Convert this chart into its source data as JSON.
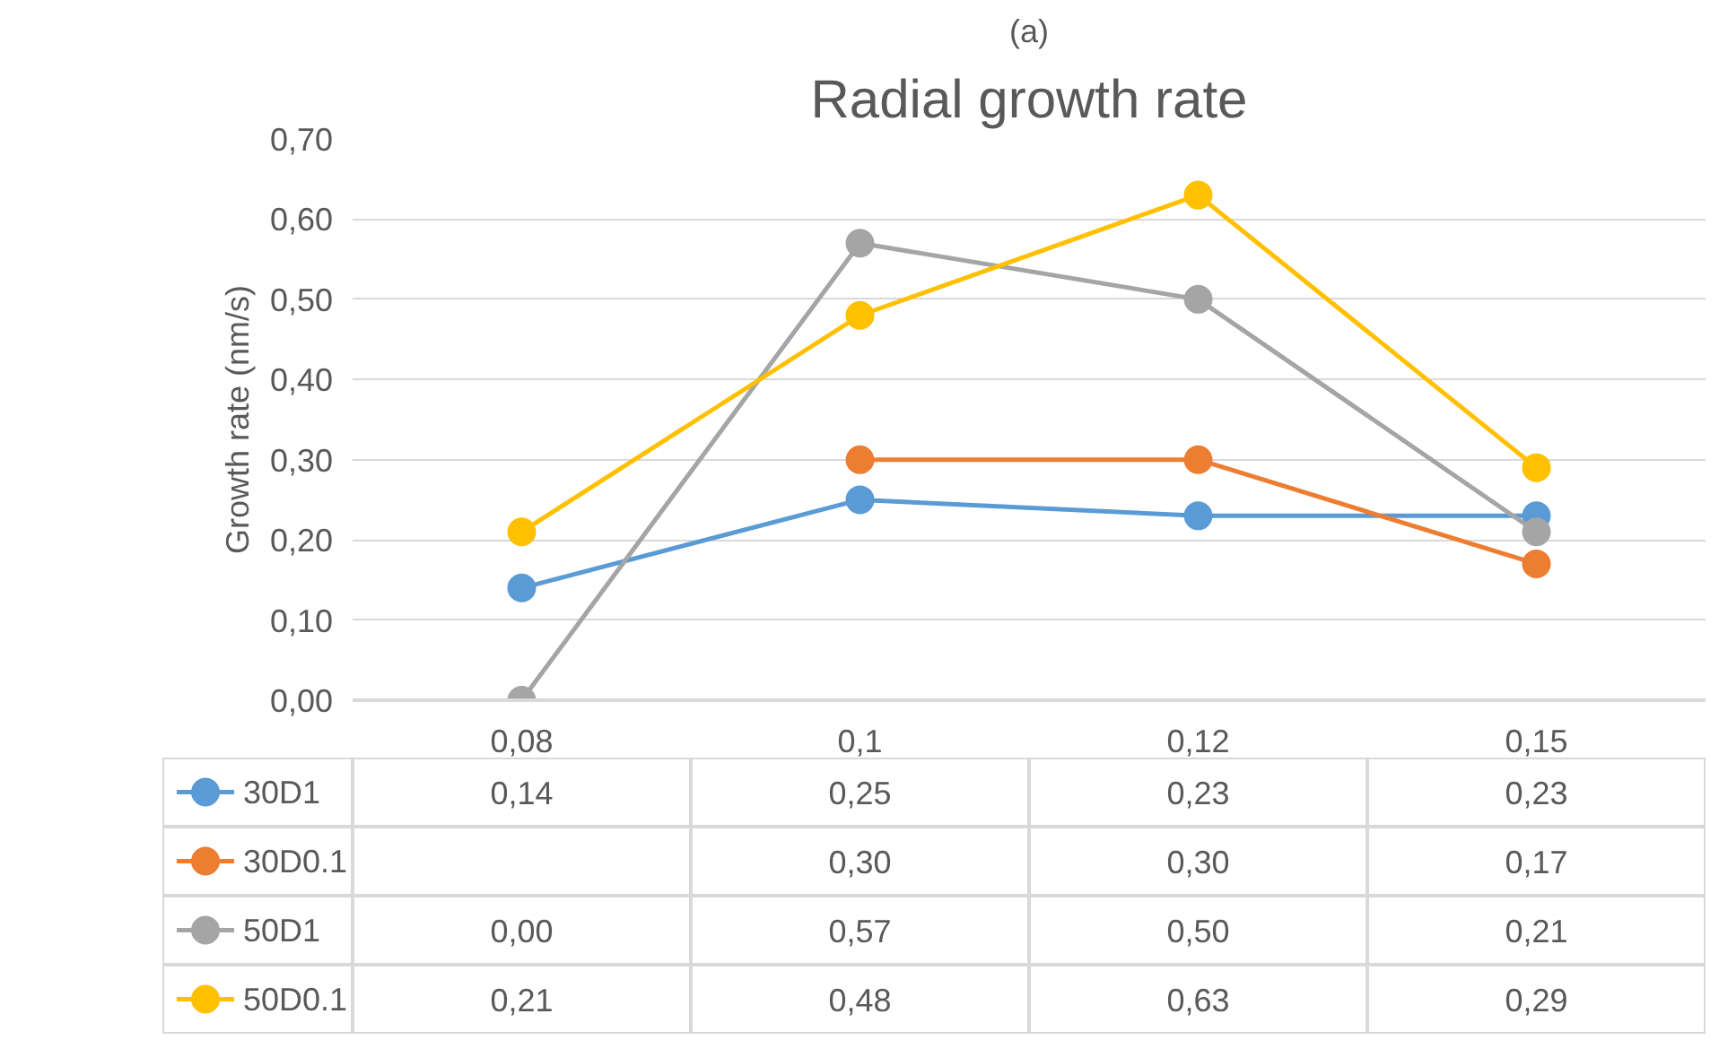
{
  "chart_data": {
    "type": "line",
    "title": "Radial growth rate",
    "ylabel": "Growth rate (nm/s)",
    "annotations": [
      "(a)"
    ],
    "categories": [
      "0,08",
      "0,1",
      "0,12",
      "0,15"
    ],
    "series": [
      {
        "name": "30D1",
        "color": "#5b9bd5",
        "values": [
          0.14,
          0.25,
          0.23,
          0.23
        ],
        "value_labels": [
          "0,14",
          "0,25",
          "0,23",
          "0,23"
        ]
      },
      {
        "name": "30D0.1",
        "color": "#ed7d31",
        "values": [
          null,
          0.3,
          0.3,
          0.17
        ],
        "value_labels": [
          null,
          "0,30",
          "0,30",
          "0,17"
        ]
      },
      {
        "name": "50D1",
        "color": "#a5a5a5",
        "values": [
          0.0,
          0.57,
          0.5,
          0.21
        ],
        "value_labels": [
          "0,00",
          "0,57",
          "0,50",
          "0,21"
        ]
      },
      {
        "name": "50D0.1",
        "color": "#ffc000",
        "values": [
          0.21,
          0.48,
          0.63,
          0.29
        ],
        "value_labels": [
          "0,21",
          "0,48",
          "0,63",
          "0,29"
        ]
      }
    ],
    "ylim": [
      0,
      0.7
    ],
    "yticks": [
      {
        "value": 0,
        "label": "0,00"
      },
      {
        "value": 0.1,
        "label": "0,10"
      },
      {
        "value": 0.2,
        "label": "0,20"
      },
      {
        "value": 0.3,
        "label": "0,30"
      },
      {
        "value": 0.4,
        "label": "0,40"
      },
      {
        "value": 0.5,
        "label": "0,50"
      },
      {
        "value": 0.6,
        "label": "0,60"
      },
      {
        "value": 0.7,
        "label": "0,70"
      }
    ],
    "grid": "y",
    "legend": "bottom",
    "marker": "circle",
    "line_style": "solid"
  }
}
